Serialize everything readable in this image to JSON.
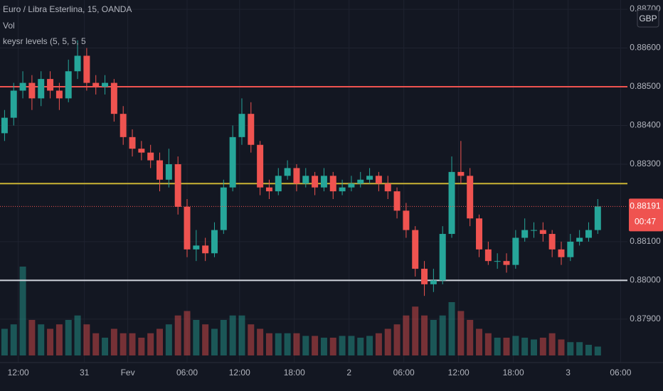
{
  "chart_data": {
    "type": "candlestick",
    "title": "Euro / Libra Esterlina, 15, OANDA",
    "indicators": [
      "Vol",
      "keysr levels (5, 5, 5, 5"
    ],
    "currency": "GBP",
    "xlim": [
      0,
      275
    ],
    "xticks": [
      {
        "value": 8,
        "label": "12:00"
      },
      {
        "value": 37,
        "label": "31"
      },
      {
        "value": 56,
        "label": "Fev"
      },
      {
        "value": 82,
        "label": "06:00"
      },
      {
        "value": 105,
        "label": "12:00"
      },
      {
        "value": 129,
        "label": "18:00"
      },
      {
        "value": 153,
        "label": "2"
      },
      {
        "value": 177,
        "label": "06:00"
      },
      {
        "value": 201,
        "label": "12:00"
      },
      {
        "value": 225,
        "label": "18:00"
      },
      {
        "value": 249,
        "label": "3"
      },
      {
        "value": 272,
        "label": "06:00"
      }
    ],
    "ylim": [
      0.87797,
      0.88724
    ],
    "yticks": [
      {
        "value": 0.887,
        "label": "0.88700"
      },
      {
        "value": 0.886,
        "label": "0.88600"
      },
      {
        "value": 0.885,
        "label": "0.88500"
      },
      {
        "value": 0.884,
        "label": "0.88400"
      },
      {
        "value": 0.883,
        "label": "0.88300"
      },
      {
        "value": 0.881,
        "label": "0.88100"
      },
      {
        "value": 0.88,
        "label": "0.88000"
      },
      {
        "value": 0.879,
        "label": "0.87900"
      }
    ],
    "grid": true,
    "up_color": "#26a69a",
    "down_color": "#ef5350",
    "x": [
      2,
      6,
      10,
      14,
      18,
      22,
      26,
      30,
      34,
      38,
      42,
      46,
      50,
      54,
      58,
      62,
      66,
      70,
      74,
      78,
      82,
      86,
      90,
      94,
      98,
      102,
      106,
      110,
      114,
      118,
      122,
      126,
      130,
      134,
      138,
      142,
      146,
      150,
      154,
      158,
      162,
      166,
      170,
      174,
      178,
      182,
      186,
      190,
      194,
      198,
      202,
      206,
      210,
      214,
      218,
      222,
      226,
      230,
      234,
      238,
      242,
      246,
      250,
      254,
      258,
      262
    ],
    "open": [
      0.8838,
      0.8842,
      0.8849,
      0.8851,
      0.8847,
      0.8852,
      0.8849,
      0.8847,
      0.8854,
      0.8858,
      0.8851,
      0.885,
      0.8851,
      0.8843,
      0.8837,
      0.8834,
      0.8833,
      0.8831,
      0.8826,
      0.883,
      0.8819,
      0.8808,
      0.8809,
      0.8807,
      0.8813,
      0.8824,
      0.8837,
      0.8843,
      0.8835,
      0.8824,
      0.8823,
      0.8827,
      0.8829,
      0.8825,
      0.8827,
      0.8824,
      0.8827,
      0.8823,
      0.8824,
      0.8825,
      0.8826,
      0.8827,
      0.8825,
      0.8823,
      0.8818,
      0.8813,
      0.8803,
      0.8799,
      0.88,
      0.8812,
      0.8828,
      0.8827,
      0.8816,
      0.8808,
      0.8805,
      0.8805,
      0.8804,
      0.8811,
      0.8813,
      0.8813,
      0.8812,
      0.8808,
      0.8806,
      0.881,
      0.8811,
      0.8813
    ],
    "high": [
      0.8844,
      0.8851,
      0.8854,
      0.8853,
      0.8854,
      0.8854,
      0.8851,
      0.8857,
      0.8862,
      0.886,
      0.8853,
      0.8853,
      0.8852,
      0.8845,
      0.8839,
      0.8836,
      0.8835,
      0.8833,
      0.8834,
      0.8832,
      0.8821,
      0.8813,
      0.8811,
      0.8815,
      0.8826,
      0.884,
      0.8847,
      0.8846,
      0.8836,
      0.8826,
      0.8829,
      0.8831,
      0.883,
      0.8829,
      0.8828,
      0.8829,
      0.8828,
      0.8826,
      0.8827,
      0.8828,
      0.8829,
      0.8828,
      0.8827,
      0.8824,
      0.882,
      0.8814,
      0.8805,
      0.8803,
      0.8814,
      0.8832,
      0.8836,
      0.8829,
      0.8817,
      0.881,
      0.8807,
      0.8807,
      0.8813,
      0.8816,
      0.8815,
      0.8815,
      0.8813,
      0.881,
      0.8812,
      0.8813,
      0.8815,
      0.8821
    ],
    "low": [
      0.8836,
      0.884,
      0.8847,
      0.8844,
      0.8845,
      0.8847,
      0.8844,
      0.8846,
      0.8852,
      0.8849,
      0.8848,
      0.8848,
      0.8841,
      0.8835,
      0.8832,
      0.8831,
      0.8829,
      0.8823,
      0.8824,
      0.8817,
      0.8806,
      0.8805,
      0.8805,
      0.8806,
      0.8812,
      0.8823,
      0.8835,
      0.8833,
      0.8822,
      0.8821,
      0.8822,
      0.8826,
      0.8823,
      0.8824,
      0.8822,
      0.8823,
      0.8821,
      0.8822,
      0.8823,
      0.8824,
      0.8825,
      0.8823,
      0.8821,
      0.8816,
      0.8811,
      0.8801,
      0.8796,
      0.8797,
      0.8799,
      0.8811,
      0.8825,
      0.8814,
      0.8806,
      0.8804,
      0.8803,
      0.8802,
      0.8803,
      0.881,
      0.8811,
      0.881,
      0.8806,
      0.8804,
      0.8805,
      0.8809,
      0.881,
      0.8812
    ],
    "close": [
      0.8842,
      0.8849,
      0.8851,
      0.8847,
      0.8852,
      0.8849,
      0.8847,
      0.8854,
      0.8858,
      0.8851,
      0.885,
      0.8851,
      0.8843,
      0.8837,
      0.8834,
      0.8833,
      0.8831,
      0.8826,
      0.883,
      0.8819,
      0.8808,
      0.8809,
      0.8807,
      0.8813,
      0.8824,
      0.8837,
      0.8843,
      0.8835,
      0.8824,
      0.8823,
      0.8827,
      0.8829,
      0.8825,
      0.8827,
      0.8824,
      0.8827,
      0.8823,
      0.8824,
      0.8825,
      0.8826,
      0.8827,
      0.8825,
      0.8823,
      0.8818,
      0.8813,
      0.8803,
      0.8799,
      0.88,
      0.8812,
      0.8828,
      0.8827,
      0.8816,
      0.8808,
      0.8805,
      0.8805,
      0.8804,
      0.8811,
      0.8813,
      0.8813,
      0.8812,
      0.8808,
      0.8806,
      0.881,
      0.8811,
      0.8813,
      0.88191
    ],
    "volume": [
      30,
      35,
      100,
      40,
      35,
      30,
      35,
      40,
      45,
      35,
      25,
      20,
      30,
      25,
      25,
      20,
      25,
      30,
      35,
      45,
      50,
      40,
      35,
      30,
      40,
      45,
      45,
      35,
      30,
      25,
      25,
      25,
      25,
      22,
      22,
      20,
      20,
      22,
      22,
      20,
      22,
      25,
      30,
      35,
      45,
      55,
      45,
      40,
      45,
      60,
      50,
      40,
      30,
      25,
      20,
      20,
      22,
      20,
      18,
      20,
      25,
      18,
      15,
      15,
      12,
      10
    ],
    "levels": [
      {
        "value": 0.885,
        "color": "#ef5350"
      },
      {
        "value": 0.8825,
        "color": "#c9b334"
      },
      {
        "value": 0.88,
        "color": "#d1d4dc"
      }
    ],
    "last_price": 0.88191,
    "countdown": "00:47"
  }
}
